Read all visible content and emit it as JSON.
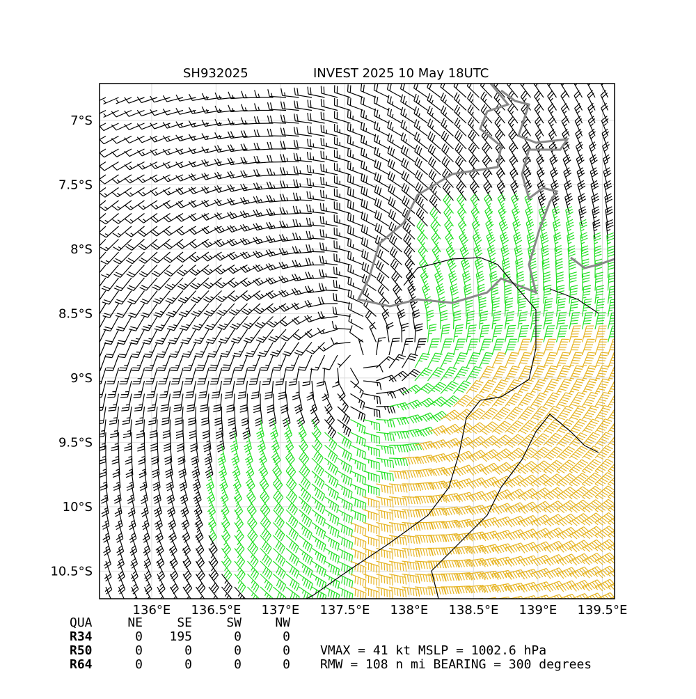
{
  "map": {
    "title_left": "SH932025",
    "title_right": "INVEST 2025 10 May 18UTC",
    "xlim": [
      135.595,
      139.595
    ],
    "ylim": [
      -10.714,
      -6.714
    ],
    "xticks": [
      {
        "value": 136,
        "label": "136°E"
      },
      {
        "value": 136.5,
        "label": "136.5°E"
      },
      {
        "value": 137,
        "label": "137°E"
      },
      {
        "value": 137.5,
        "label": "137.5°E"
      },
      {
        "value": 138,
        "label": "138°E"
      },
      {
        "value": 138.5,
        "label": "138.5°E"
      },
      {
        "value": 139,
        "label": "139°E"
      },
      {
        "value": 139.5,
        "label": "139.5°E"
      }
    ],
    "yticks": [
      {
        "value": -7,
        "label": "7°S"
      },
      {
        "value": -7.5,
        "label": "7.5°S"
      },
      {
        "value": -8,
        "label": "8°S"
      },
      {
        "value": -8.5,
        "label": "8.5°S"
      },
      {
        "value": -9,
        "label": "9°S"
      },
      {
        "value": -9.5,
        "label": "9.5°S"
      },
      {
        "value": -10,
        "label": "10°S"
      },
      {
        "value": -10.5,
        "label": "10.5°S"
      }
    ]
  },
  "radii": {
    "header": [
      "QUA",
      "NE",
      "SE",
      "SW",
      "NW"
    ],
    "rows": [
      [
        "R34",
        0,
        195,
        0,
        0
      ],
      [
        "R50",
        0,
        0,
        0,
        0
      ],
      [
        "R64",
        0,
        0,
        0,
        0
      ]
    ]
  },
  "summary": [
    "VMAX =  41 kt MSLP = 1002.6 hPa",
    "RMW = 108 n mi BEARING = 300 degrees"
  ]
}
